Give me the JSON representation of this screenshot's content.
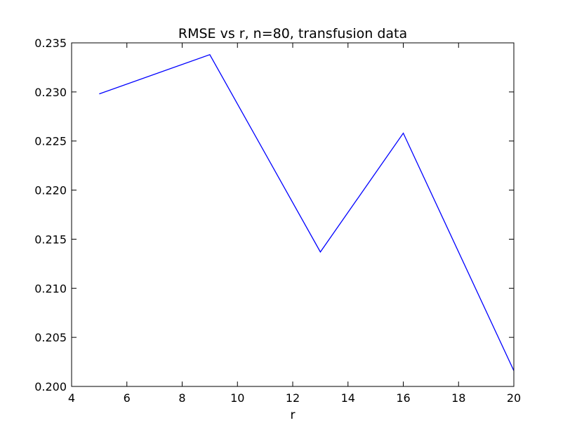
{
  "chart_data": {
    "type": "line",
    "title": "RMSE vs r, n=80, transfusion data",
    "xlabel": "r",
    "ylabel": "",
    "xlim": [
      4,
      20
    ],
    "ylim": [
      0.2,
      0.235
    ],
    "xticks": [
      "4",
      "6",
      "8",
      "10",
      "12",
      "14",
      "16",
      "18",
      "20"
    ],
    "yticks": [
      "0.200",
      "0.205",
      "0.210",
      "0.215",
      "0.220",
      "0.225",
      "0.230",
      "0.235"
    ],
    "grid": false,
    "legend": "none",
    "series": [
      {
        "color": "#0000ff",
        "x": [
          5,
          9,
          13,
          16,
          20
        ],
        "y": [
          0.2298,
          0.2338,
          0.2137,
          0.2258,
          0.2016
        ]
      }
    ]
  }
}
